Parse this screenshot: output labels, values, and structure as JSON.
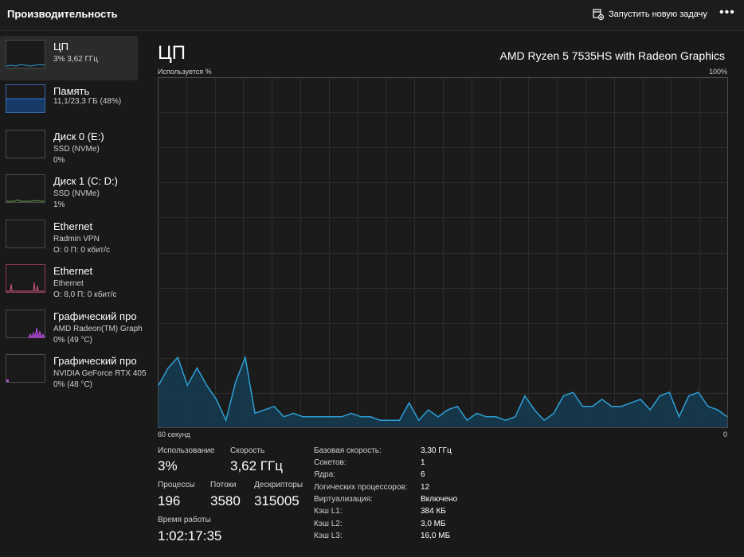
{
  "app": {
    "title": "Производительность"
  },
  "header": {
    "run_task_label": "Запустить новую задачу",
    "more_label": "•••"
  },
  "sidebar": {
    "items": [
      {
        "name": "ЦП",
        "line1": "3% 3,62 ГГц",
        "line2": "",
        "color": "#2e9fd6"
      },
      {
        "name": "Память",
        "line1": "11,1/23,3 ГБ (48%)",
        "line2": "",
        "color": "#2e7bd6"
      },
      {
        "name": "Диск 0 (E:)",
        "line1": "SSD (NVMe)",
        "line2": "0%",
        "color": "#6aa84f"
      },
      {
        "name": "Диск 1 (C: D:)",
        "line1": "SSD (NVMe)",
        "line2": "1%",
        "color": "#6aa84f"
      },
      {
        "name": "Ethernet",
        "line1": "Radmin VPN",
        "line2": "О: 0 П: 0 кбит/с",
        "color": "#b46a2e"
      },
      {
        "name": "Ethernet",
        "line1": "Ethernet",
        "line2": "О: 8,0 П: 0 кбит/с",
        "color": "#d4597e"
      },
      {
        "name": "Графический про",
        "line1": "AMD Radeon(TM) Graph",
        "line2": "0% (49 °C)",
        "color": "#b54fd6"
      },
      {
        "name": "Графический про",
        "line1": "NVIDIA GeForce RTX 405",
        "line2": "0% (48 °C)",
        "color": "#b54fd6"
      }
    ]
  },
  "main": {
    "title": "ЦП",
    "model": "AMD Ryzen 5 7535HS with Radeon Graphics",
    "y_label": "Используется %",
    "y_max_label": "100%",
    "x_left_label": "60 секунд",
    "x_right_label": "0"
  },
  "stats": {
    "usage_label": "Использование",
    "usage_value": "3%",
    "speed_label": "Скорость",
    "speed_value": "3,62 ГГц",
    "processes_label": "Процессы",
    "processes_value": "196",
    "threads_label": "Потоки",
    "threads_value": "3580",
    "handles_label": "Дескрипторы",
    "handles_value": "315005",
    "uptime_label": "Время работы",
    "uptime_value": "1:02:17:35"
  },
  "info": [
    {
      "key": "Базовая скорость:",
      "value": "3,30 ГГц"
    },
    {
      "key": "Сокетов:",
      "value": "1"
    },
    {
      "key": "Ядра:",
      "value": "6"
    },
    {
      "key": "Логических процессоров:",
      "value": "12"
    },
    {
      "key": "Виртуализация:",
      "value": "Включено"
    },
    {
      "key": "Кэш L1:",
      "value": "384 КБ"
    },
    {
      "key": "Кэш L2:",
      "value": "3,0 МБ"
    },
    {
      "key": "Кэш L3:",
      "value": "16,0 МБ"
    }
  ],
  "chart_data": {
    "type": "area",
    "xlabel": "60 секунд",
    "ylabel": "Используется %",
    "xlim": [
      60,
      0
    ],
    "ylim": [
      0,
      100
    ],
    "grid": true,
    "color": "#2e9fd6",
    "series": [
      {
        "values": [
          12,
          17,
          20,
          12,
          17,
          12,
          8,
          2,
          13,
          20,
          4,
          5,
          6,
          3,
          4,
          3,
          3,
          3,
          3,
          3,
          4,
          3,
          3,
          2,
          2,
          2,
          7,
          2,
          5,
          3,
          5,
          6,
          2,
          4,
          3,
          3,
          2,
          3,
          9,
          5,
          2,
          4,
          9,
          10,
          6,
          6,
          8,
          6,
          6,
          7,
          8,
          5,
          9,
          10,
          3,
          9,
          10,
          6,
          5,
          3
        ]
      }
    ]
  }
}
